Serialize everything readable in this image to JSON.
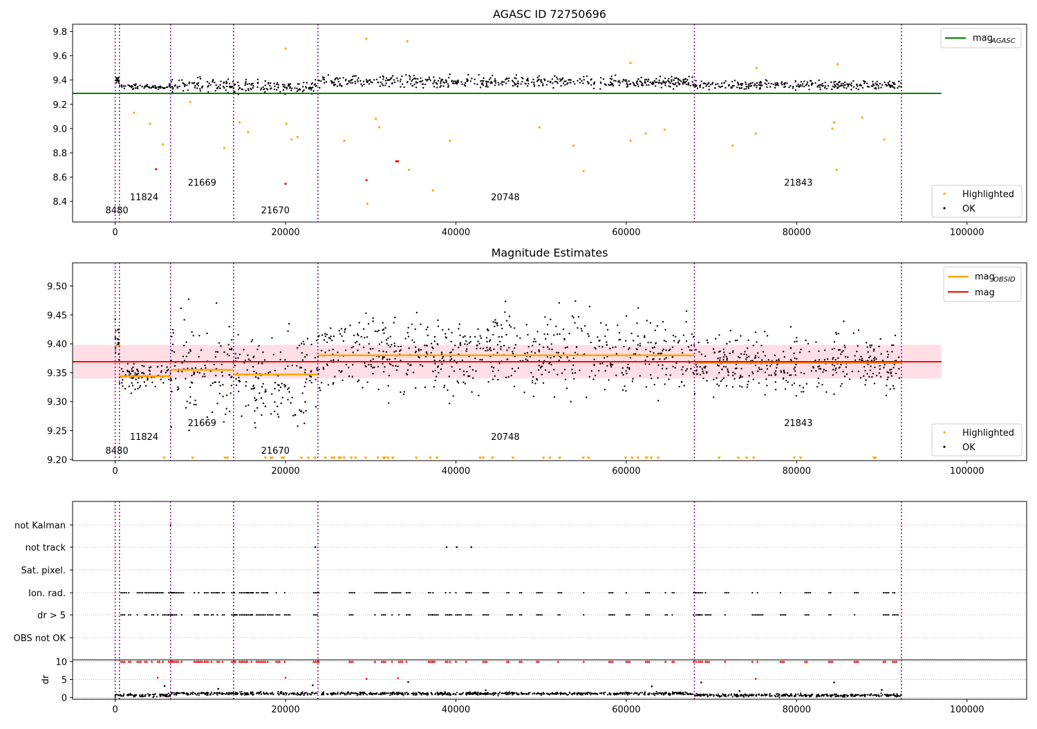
{
  "colors": {
    "highlighted": "#ffa500",
    "ok": "#000000",
    "agasc_line": "#008000",
    "mag_line": "#ff0000",
    "obsid_line": "#ffa500",
    "obsid_boundary": "#800080",
    "band": "#ffc0cb",
    "flag_dr_over_10": "#ff0000"
  },
  "chart_data": [
    {
      "type": "scatter",
      "title": "AGASC ID 72750696",
      "xlabel": "",
      "ylabel": "",
      "xlim": [
        -5000,
        107000
      ],
      "ylim": [
        8.23,
        9.86
      ],
      "xticks": [
        "0",
        "20000",
        "40000",
        "60000",
        "80000",
        "100000"
      ],
      "yticks": [
        "8.4",
        "8.6",
        "8.8",
        "9.0",
        "9.2",
        "9.4",
        "9.6",
        "9.8"
      ],
      "mag_agasc": 9.29,
      "obsid_boundaries": [
        0,
        500,
        6500,
        13900,
        23800,
        68000,
        92300
      ],
      "obsid_labels": [
        {
          "obsid": "8480",
          "x": 200,
          "y": 8.3
        },
        {
          "obsid": "11824",
          "x": 3400,
          "y": 8.41
        },
        {
          "obsid": "21669",
          "x": 10200,
          "y": 8.53
        },
        {
          "obsid": "21670",
          "x": 18800,
          "y": 8.3
        },
        {
          "obsid": "20748",
          "x": 45800,
          "y": 8.41
        },
        {
          "obsid": "21843",
          "x": 80200,
          "y": 8.53
        }
      ],
      "segments": [
        {
          "x0": 0,
          "x1": 500,
          "center": 9.4,
          "spread": 0.03
        },
        {
          "x0": 500,
          "x1": 6500,
          "center": 9.345,
          "spread": 0.02
        },
        {
          "x0": 6500,
          "x1": 13900,
          "center": 9.36,
          "spread": 0.06
        },
        {
          "x0": 13900,
          "x1": 23800,
          "center": 9.345,
          "spread": 0.06
        },
        {
          "x0": 23800,
          "x1": 68000,
          "center": 9.385,
          "spread": 0.05
        },
        {
          "x0": 68000,
          "x1": 92300,
          "center": 9.36,
          "spread": 0.04
        }
      ],
      "outliers": [
        {
          "x": 2200,
          "y": 9.13
        },
        {
          "x": 4100,
          "y": 9.04
        },
        {
          "x": 5600,
          "y": 8.87
        },
        {
          "x": 8800,
          "y": 9.22
        },
        {
          "x": 12800,
          "y": 8.84
        },
        {
          "x": 14600,
          "y": 9.05
        },
        {
          "x": 15600,
          "y": 8.97
        },
        {
          "x": 20000,
          "y": 9.66
        },
        {
          "x": 20100,
          "y": 9.04
        },
        {
          "x": 20700,
          "y": 8.91
        },
        {
          "x": 21400,
          "y": 8.93
        },
        {
          "x": 26900,
          "y": 8.9
        },
        {
          "x": 29500,
          "y": 9.74
        },
        {
          "x": 29600,
          "y": 8.38
        },
        {
          "x": 30600,
          "y": 9.08
        },
        {
          "x": 31000,
          "y": 9.01
        },
        {
          "x": 34300,
          "y": 9.72
        },
        {
          "x": 34500,
          "y": 8.66
        },
        {
          "x": 37300,
          "y": 8.49
        },
        {
          "x": 39300,
          "y": 8.9
        },
        {
          "x": 49800,
          "y": 9.01
        },
        {
          "x": 53800,
          "y": 8.86
        },
        {
          "x": 55000,
          "y": 8.65
        },
        {
          "x": 60500,
          "y": 9.54
        },
        {
          "x": 60500,
          "y": 8.9
        },
        {
          "x": 62300,
          "y": 8.96
        },
        {
          "x": 64500,
          "y": 8.99
        },
        {
          "x": 72500,
          "y": 8.86
        },
        {
          "x": 75200,
          "y": 8.96
        },
        {
          "x": 75300,
          "y": 9.5
        },
        {
          "x": 84200,
          "y": 9.0
        },
        {
          "x": 84400,
          "y": 9.05
        },
        {
          "x": 84700,
          "y": 8.66
        },
        {
          "x": 84800,
          "y": 9.53
        },
        {
          "x": 87700,
          "y": 9.09
        },
        {
          "x": 90300,
          "y": 8.91
        }
      ],
      "red_points": [
        {
          "x": 4800,
          "y": 8.665
        },
        {
          "x": 20000,
          "y": 8.545
        },
        {
          "x": 29500,
          "y": 8.575
        },
        {
          "x": 33000,
          "y": 8.73
        },
        {
          "x": 33200,
          "y": 8.73
        }
      ],
      "legend_upper": [
        {
          "label": "mag",
          "sub": "AGASC"
        }
      ],
      "legend_lower": [
        {
          "label": "Highlighted"
        },
        {
          "label": "OK"
        }
      ]
    },
    {
      "type": "scatter",
      "title": "Magnitude Estimates",
      "xlabel": "",
      "ylabel": "",
      "xlim": [
        -5000,
        107000
      ],
      "ylim": [
        9.198,
        9.54
      ],
      "xticks": [
        "0",
        "20000",
        "40000",
        "60000",
        "80000",
        "100000"
      ],
      "yticks": [
        "9.20",
        "9.25",
        "9.30",
        "9.35",
        "9.40",
        "9.45",
        "9.50"
      ],
      "mag": 9.369,
      "mag_band": [
        9.34,
        9.398
      ],
      "band_xlim": [
        -5000,
        97000
      ],
      "obsid_boundaries": [
        0,
        500,
        6500,
        13900,
        23800,
        68000,
        92300
      ],
      "obsid_mags": [
        {
          "x0": 0,
          "x1": 500,
          "mag": 9.397
        },
        {
          "x0": 500,
          "x1": 6500,
          "mag": 9.344
        },
        {
          "x0": 6500,
          "x1": 13900,
          "mag": 9.355
        },
        {
          "x0": 13900,
          "x1": 23800,
          "mag": 9.347
        },
        {
          "x0": 23800,
          "x1": 68000,
          "mag": 9.38
        },
        {
          "x0": 68000,
          "x1": 92300,
          "mag": 9.367
        }
      ],
      "obsid_labels": [
        {
          "obsid": "8480",
          "x": 200,
          "y": 9.21
        },
        {
          "obsid": "11824",
          "x": 3400,
          "y": 9.234
        },
        {
          "obsid": "21669",
          "x": 10200,
          "y": 9.258
        },
        {
          "obsid": "21670",
          "x": 18800,
          "y": 9.21
        },
        {
          "obsid": "20748",
          "x": 45800,
          "y": 9.234
        },
        {
          "obsid": "21843",
          "x": 80200,
          "y": 9.258
        }
      ],
      "segments": [
        {
          "x0": 0,
          "x1": 500,
          "center": 9.405,
          "spread": 0.035
        },
        {
          "x0": 500,
          "x1": 6500,
          "center": 9.345,
          "spread": 0.025
        },
        {
          "x0": 6500,
          "x1": 13900,
          "center": 9.355,
          "spread": 0.09
        },
        {
          "x0": 13900,
          "x1": 23800,
          "center": 9.345,
          "spread": 0.08
        },
        {
          "x0": 23800,
          "x1": 68000,
          "center": 9.382,
          "spread": 0.07
        },
        {
          "x0": 68000,
          "x1": 92300,
          "center": 9.366,
          "spread": 0.055
        }
      ],
      "legend_upper": [
        {
          "label": "mag",
          "sub": "OBSID"
        },
        {
          "label": "mag"
        }
      ],
      "legend_lower": [
        {
          "label": "Highlighted"
        },
        {
          "label": "OK"
        }
      ]
    },
    {
      "type": "scatter",
      "title": "",
      "xlabel": "",
      "ylabel": "",
      "xlim": [
        -5000,
        107000
      ],
      "flag_rows": [
        "not Kalman",
        "not track",
        "Sat. pixel.",
        "Ion. rad.",
        "dr > 5",
        "OBS not OK"
      ],
      "obsid_boundaries": [
        0,
        500,
        6500,
        13900,
        23800,
        68000,
        92300
      ],
      "flag_events_x": [
        700,
        1600,
        2600,
        3500,
        4300,
        5000,
        5600,
        6300,
        6600,
        7200,
        7800,
        9300,
        9800,
        10500,
        11300,
        12000,
        12600,
        13700,
        14000,
        14600,
        15000,
        15500,
        16000,
        16600,
        17200,
        17900,
        18900,
        19900,
        23300,
        23700,
        27500,
        30500,
        31300,
        32500,
        33300,
        34200,
        36800,
        37300,
        38800,
        39300,
        40000,
        41200,
        43200,
        46000,
        47500,
        49500,
        52000,
        55000,
        58000,
        60000,
        62300,
        64600,
        65400,
        67900,
        68200,
        68500,
        69300,
        71600,
        74800,
        75400,
        78100,
        81000,
        83800,
        86800,
        90200,
        91300
      ],
      "not_track_x": [
        23500,
        38900,
        40100,
        41800
      ],
      "not_kalman_x": [
        6500
      ]
    },
    {
      "type": "scatter",
      "title": "",
      "xlabel": "",
      "ylabel": "dr",
      "xlim": [
        -5000,
        107000
      ],
      "ylim": [
        -0.5,
        10.5
      ],
      "xticks": [
        "0",
        "20000",
        "40000",
        "60000",
        "80000",
        "100000"
      ],
      "yticks": [
        "0",
        "5",
        "10"
      ],
      "dr_baseline": 0.6,
      "dr_scatter": [
        {
          "x": 5000,
          "y": 5.5
        },
        {
          "x": 5800,
          "y": 3.2
        },
        {
          "x": 20000,
          "y": 5.5
        },
        {
          "x": 29500,
          "y": 5.2
        },
        {
          "x": 33200,
          "y": 5.4
        },
        {
          "x": 34400,
          "y": 4.3
        },
        {
          "x": 63000,
          "y": 3.1
        },
        {
          "x": 68800,
          "y": 4.2
        },
        {
          "x": 75200,
          "y": 5.2
        },
        {
          "x": 84400,
          "y": 4.2
        },
        {
          "x": 43500,
          "y": 2.0
        },
        {
          "x": 12100,
          "y": 2.4
        },
        {
          "x": 23200,
          "y": 3.4
        },
        {
          "x": 73300,
          "y": 1.8
        },
        {
          "x": 90000,
          "y": 2.1
        }
      ]
    }
  ]
}
